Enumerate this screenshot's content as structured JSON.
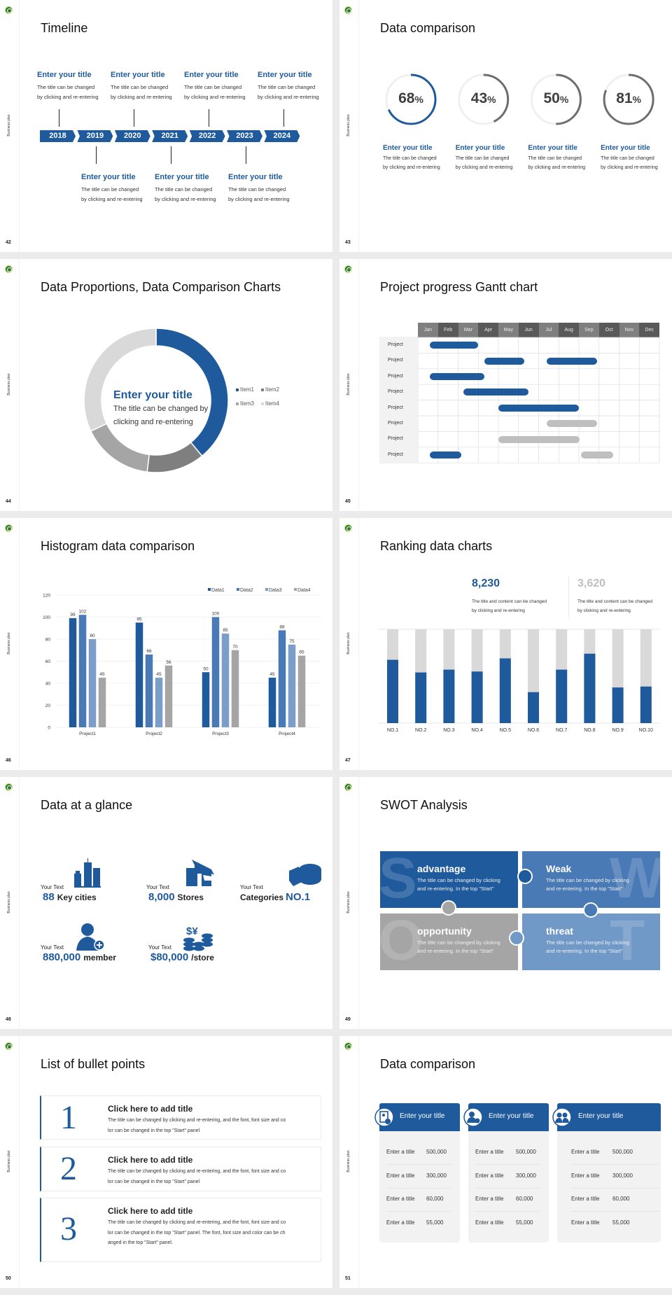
{
  "theme": {
    "accent": "#1f5a9c",
    "gray_dark": "#7f7f7f",
    "gray_mid": "#a5a5a5",
    "gray_light": "#d9d9d9"
  },
  "common": {
    "side_label": "Business plan",
    "logo_icon": "green-round-emblem"
  },
  "slides": [
    {
      "page": "42",
      "title": "Timeline",
      "years": [
        "2018",
        "2019",
        "2020",
        "2021",
        "2022",
        "2023",
        "2024"
      ],
      "events": [
        {
          "year": "2018",
          "position": "top",
          "title": "Enter your title",
          "desc": [
            "The title can be changed",
            "by clicking and re-entering"
          ]
        },
        {
          "year": "2019",
          "position": "bottom",
          "title": "Enter your title",
          "desc": [
            "The title can be changed",
            "by clicking and re-entering"
          ]
        },
        {
          "year": "2020",
          "position": "top",
          "title": "Enter your title",
          "desc": [
            "The title can be changed",
            "by clicking and re-entering"
          ]
        },
        {
          "year": "2021",
          "position": "bottom",
          "title": "Enter your title",
          "desc": [
            "The title can be changed",
            "by clicking and re-entering"
          ]
        },
        {
          "year": "2022",
          "position": "top",
          "title": "Enter your title",
          "desc": [
            "The title can be changed",
            "by clicking and re-entering"
          ]
        },
        {
          "year": "2023",
          "position": "bottom",
          "title": "Enter your title",
          "desc": [
            "The title can be changed",
            "by clicking and re-entering"
          ]
        },
        {
          "year": "2024",
          "position": "top",
          "title": "Enter your title",
          "desc": [
            "The title can be changed",
            "by clicking and re-entering"
          ]
        }
      ]
    },
    {
      "page": "43",
      "title": "Data comparison",
      "rings": [
        {
          "value": "68",
          "unit": "%",
          "fraction": 0.68,
          "color": "#1f5a9c",
          "title": "Enter your title",
          "desc": [
            "The title can be changed",
            "by clicking and re-entering"
          ]
        },
        {
          "value": "43",
          "unit": "%",
          "fraction": 0.43,
          "color": "#6e6e6e",
          "title": "Enter your title",
          "desc": [
            "The title can be changed",
            "by clicking and re-entering"
          ]
        },
        {
          "value": "50",
          "unit": "%",
          "fraction": 0.5,
          "color": "#6e6e6e",
          "title": "Enter your title",
          "desc": [
            "The title can be changed",
            "by clicking and re-entering"
          ]
        },
        {
          "value": "81",
          "unit": "%",
          "fraction": 0.81,
          "color": "#6e6e6e",
          "title": "Enter your title",
          "desc": [
            "The title can be changed",
            "by clicking and re-entering"
          ]
        }
      ]
    },
    {
      "page": "44",
      "title": "Data Proportions, Data Comparison Charts",
      "center_title": "Enter your title",
      "center_desc": [
        "The title can be changed by",
        "clicking and re-entering"
      ],
      "chart_data": {
        "type": "pie",
        "donut": true,
        "legend": "right",
        "categories": [
          "Item1",
          "Item2",
          "Item3",
          "Item4"
        ],
        "values": [
          39,
          13,
          16,
          32
        ],
        "colors": [
          "#1f5a9c",
          "#7f7f7f",
          "#a5a5a5",
          "#d9d9d9"
        ]
      }
    },
    {
      "page": "45",
      "title": "Project progress Gantt chart",
      "chart_data": {
        "type": "bar",
        "orientation": "gantt",
        "months": [
          "Jan",
          "Feb",
          "Mar",
          "Apr",
          "May",
          "Jun",
          "Jul",
          "Aug",
          "Sep",
          "Oct",
          "Nov",
          "Dec"
        ],
        "rows": [
          {
            "label": "Project",
            "bars": [
              {
                "start": 0.6,
                "end": 3.0,
                "color": "blue"
              }
            ]
          },
          {
            "label": "Project",
            "bars": [
              {
                "start": 3.3,
                "end": 5.3,
                "color": "blue"
              },
              {
                "start": 6.4,
                "end": 8.9,
                "color": "blue"
              }
            ]
          },
          {
            "label": "Project",
            "bars": [
              {
                "start": 0.6,
                "end": 3.3,
                "color": "blue"
              }
            ]
          },
          {
            "label": "Project",
            "bars": [
              {
                "start": 2.25,
                "end": 5.5,
                "color": "blue"
              }
            ]
          },
          {
            "label": "Project",
            "bars": [
              {
                "start": 4.0,
                "end": 8.0,
                "color": "blue"
              }
            ]
          },
          {
            "label": "Project",
            "bars": [
              {
                "start": 6.4,
                "end": 8.9,
                "color": "gray"
              }
            ]
          },
          {
            "label": "Project",
            "bars": [
              {
                "start": 4.0,
                "end": 8.05,
                "color": "gray"
              }
            ]
          },
          {
            "label": "Project",
            "bars": [
              {
                "start": 0.6,
                "end": 2.15,
                "color": "blue"
              },
              {
                "start": 8.1,
                "end": 9.7,
                "color": "gray"
              }
            ]
          }
        ],
        "colors": {
          "blue": "#1f5a9c",
          "gray": "#bfbfbf"
        }
      }
    },
    {
      "page": "46",
      "title": "Histogram data comparison",
      "chart_data": {
        "type": "bar",
        "grid": true,
        "legend": "top-right",
        "categories": [
          "Project1",
          "Project2",
          "Project3",
          "Project4"
        ],
        "series": [
          {
            "name": "Data1",
            "values": [
              99,
              95,
              50,
              45
            ],
            "color": "#1f5a9c"
          },
          {
            "name": "Data2",
            "values": [
              102,
              66,
              100,
              88
            ],
            "color": "#4a7ab5"
          },
          {
            "name": "Data3",
            "values": [
              80,
              45,
              85,
              75
            ],
            "color": "#7a9ec9"
          },
          {
            "name": "Data4",
            "values": [
              45,
              56,
              70,
              65
            ],
            "color": "#a5a5a5"
          }
        ],
        "ylim": [
          0,
          120
        ],
        "yticks": [
          "0",
          "20",
          "40",
          "60",
          "80",
          "100",
          "120"
        ]
      }
    },
    {
      "page": "47",
      "title": "Ranking data charts",
      "stats": [
        {
          "value": "8,230",
          "color": "#1f5a9c",
          "desc": [
            "The title and content can be changed",
            "by clicking and re-entering"
          ]
        },
        {
          "value": "3,620",
          "color": "#bfbfbf",
          "desc": [
            "The title and content can be changed",
            "by clicking and re-entering"
          ]
        }
      ],
      "chart_data": {
        "type": "bar",
        "stacked": true,
        "categories": [
          "NO.1",
          "NO.2",
          "NO.3",
          "NO.4",
          "NO.5",
          "NO.6",
          "NO.7",
          "NO.8",
          "NO.9",
          "NO.10"
        ],
        "values": [
          0.675,
          0.54,
          0.57,
          0.55,
          0.69,
          0.33,
          0.57,
          0.74,
          0.38,
          0.39
        ],
        "ylim": [
          0,
          1
        ],
        "colors": {
          "value": "#1f5a9c",
          "remainder": "#d9d9d9"
        }
      }
    },
    {
      "page": "48",
      "title": "Data at a glance",
      "items": [
        {
          "label": "Your Text",
          "before": "",
          "value": "88",
          "after": "Key cities",
          "icon": "city-buildings-icon"
        },
        {
          "label": "Your Text",
          "before": "",
          "value": "8,000",
          "after": "Stores",
          "icon": "store-icon"
        },
        {
          "label": "Your Text",
          "before": "Categories",
          "value": "NO.1",
          "after": "",
          "icon": "pie-chart-icon"
        },
        {
          "label": "Your Text",
          "before": "",
          "value": "880,000",
          "after": "member",
          "icon": "add-member-icon"
        },
        {
          "label": "Your Text",
          "before": "",
          "value": "$80,000",
          "after": "/store",
          "icon": "coins-icon"
        }
      ],
      "coins_glyph": "$¥"
    },
    {
      "page": "49",
      "title": "SWOT Analysis",
      "quadrants": [
        {
          "letter": "S",
          "heading": "advantage",
          "desc": [
            "The title can be changed by clicking",
            "and re-entering. In the top \"Start\""
          ],
          "color": "#1f5a9c"
        },
        {
          "letter": "W",
          "heading": "Weak",
          "desc": [
            "The title can be changed by clicking",
            "and re-entering. In the top \"Start\""
          ],
          "color": "#4a7ab5"
        },
        {
          "letter": "O",
          "heading": "opportunity",
          "desc": [
            "The title can be changed by clicking",
            "and re-entering. In the top \"Start\""
          ],
          "color": "#a5a5a5"
        },
        {
          "letter": "T",
          "heading": "threat",
          "desc": [
            "The title can be changed by clicking",
            "and re-entering. In the top \"Start\""
          ],
          "color": "#7099c8"
        }
      ]
    },
    {
      "page": "50",
      "title": "List of bullet points",
      "bullets": [
        {
          "number": "1",
          "title": "Click here to add title",
          "desc": [
            "The title can be changed by clicking and re-entering, and the font, font size and co",
            "lor can be changed in the top \"Start\" panel"
          ]
        },
        {
          "number": "2",
          "title": "Click here to add title",
          "desc": [
            "The title can be changed by clicking and re-entering, and the font, font size and co",
            "lor can be changed in the top \"Start\" panel"
          ]
        },
        {
          "number": "3",
          "title": "Click here to add title",
          "desc": [
            "The title can be changed by clicking and re-entering, and the font, font size and co",
            "lor can be changed in the top \"Start\" panel. The font, font size and color can be ch",
            "anged in the top \"Start\" panel."
          ]
        }
      ]
    },
    {
      "page": "51",
      "title": "Data comparison",
      "cards": [
        {
          "title": "Enter your title",
          "icon": "user-document-icon",
          "rows": [
            {
              "label": "Enter a title",
              "value": "500,000"
            },
            {
              "label": "Enter a title",
              "value": "300,000"
            },
            {
              "label": "Enter a title",
              "value": "60,000"
            },
            {
              "label": "Enter a title",
              "value": "55,000"
            }
          ]
        },
        {
          "title": "Enter your title",
          "icon": "add-user-icon",
          "rows": [
            {
              "label": "Enter a title",
              "value": "500,000"
            },
            {
              "label": "Enter a title",
              "value": "300,000"
            },
            {
              "label": "Enter a title",
              "value": "60,000"
            },
            {
              "label": "Enter a title",
              "value": "55,000"
            }
          ]
        },
        {
          "title": "Enter your title",
          "icon": "user-group-icon",
          "rows": [
            {
              "label": "Enter a title",
              "value": "500,000"
            },
            {
              "label": "Enter a title",
              "value": "300,000"
            },
            {
              "label": "Enter a title",
              "value": "60,000"
            },
            {
              "label": "Enter a title",
              "value": "55,000"
            }
          ]
        }
      ]
    }
  ]
}
